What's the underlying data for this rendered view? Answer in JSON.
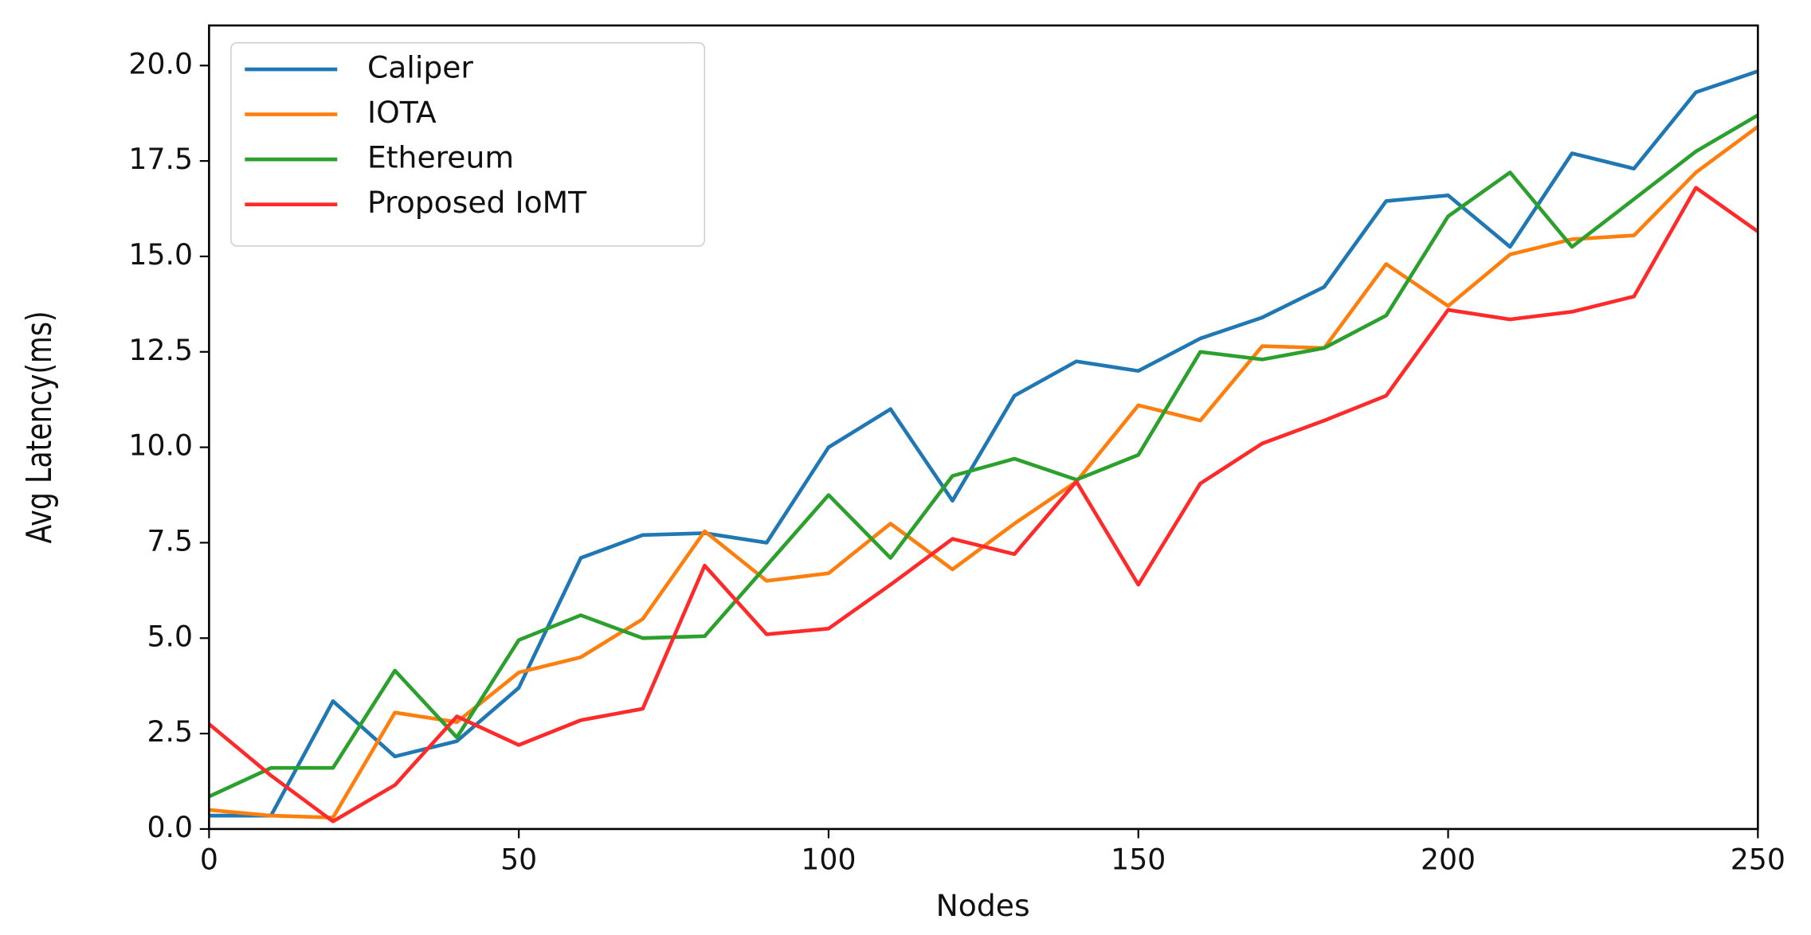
{
  "chart_data": {
    "type": "line",
    "x_label": "Nodes",
    "y_label": "Avg Latency(ms)",
    "x": [
      0,
      10,
      20,
      30,
      40,
      50,
      60,
      70,
      80,
      90,
      100,
      110,
      120,
      130,
      140,
      150,
      160,
      170,
      180,
      190,
      200,
      210,
      220,
      230,
      240,
      250
    ],
    "series": [
      {
        "name": "Caliper",
        "color": "#1f77b4",
        "values": [
          0.35,
          0.35,
          3.35,
          1.9,
          2.3,
          3.7,
          7.1,
          7.7,
          7.75,
          7.5,
          10.0,
          11.0,
          8.6,
          11.35,
          12.25,
          12.0,
          12.85,
          13.4,
          14.2,
          16.45,
          16.6,
          15.25,
          17.7,
          17.3,
          19.3,
          19.85
        ]
      },
      {
        "name": "IOTA",
        "color": "#ff7f0e",
        "values": [
          0.5,
          0.35,
          0.3,
          3.05,
          2.8,
          4.1,
          4.5,
          5.5,
          7.8,
          6.5,
          6.7,
          8.0,
          6.8,
          8.0,
          9.1,
          11.1,
          10.7,
          12.65,
          12.6,
          14.8,
          13.7,
          15.05,
          15.45,
          15.55,
          17.2,
          18.4
        ]
      },
      {
        "name": "Ethereum",
        "color": "#2ca02c",
        "values": [
          0.85,
          1.6,
          1.6,
          4.15,
          2.4,
          4.95,
          5.6,
          5.0,
          5.05,
          6.9,
          8.75,
          7.1,
          9.25,
          9.7,
          9.15,
          9.8,
          12.5,
          12.3,
          12.6,
          13.45,
          16.05,
          17.2,
          15.25,
          16.5,
          17.75,
          18.7
        ]
      },
      {
        "name": "Proposed IoMT",
        "color": "#ff2a2a",
        "values": [
          2.75,
          1.4,
          0.2,
          1.15,
          2.95,
          2.2,
          2.85,
          3.15,
          6.9,
          5.1,
          5.25,
          6.4,
          7.6,
          7.2,
          9.1,
          6.4,
          9.05,
          10.1,
          10.7,
          11.35,
          13.6,
          13.35,
          13.55,
          13.95,
          16.8,
          15.65
        ]
      }
    ],
    "xlim": [
      0,
      250
    ],
    "xticks": [
      0,
      50,
      100,
      150,
      200,
      250
    ],
    "ylim": [
      0,
      21.05
    ],
    "yticks": [
      {
        "value": 0,
        "label": "0.0"
      },
      {
        "value": 2.5,
        "label": "2.5"
      },
      {
        "value": 5,
        "label": "5.0"
      },
      {
        "value": 7.5,
        "label": "7.5"
      },
      {
        "value": 10,
        "label": "10.0"
      },
      {
        "value": 12.5,
        "label": "12.5"
      },
      {
        "value": 15,
        "label": "15.0"
      },
      {
        "value": 17.5,
        "label": "17.5"
      },
      {
        "value": 20,
        "label": "20.0"
      }
    ],
    "legend": "upper left",
    "grid": false
  }
}
